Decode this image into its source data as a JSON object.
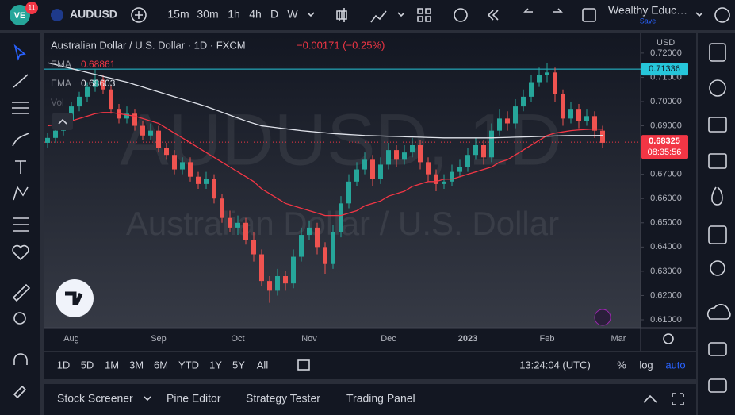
{
  "toolbar": {
    "badge": "11",
    "symbol": "AUDUSD",
    "intervals": [
      "15m",
      "30m",
      "1h",
      "4h",
      "D",
      "W"
    ],
    "layout_name": "Wealthy Educ…",
    "save": "Save"
  },
  "legend": {
    "change": "−0.00171 (−0.25%)",
    "ema_labels": [
      "EMA",
      "EMA"
    ],
    "volume": "Vol"
  },
  "watermark": {
    "symbol": "AUDUSD, 1D",
    "description": "Australian Dollar / U.S. Dollar"
  },
  "chart_data": {
    "type": "candlestick",
    "title": "Australian Dollar / U.S. Dollar · 1D · FXCM",
    "currency": "USD",
    "categories": [
      null,
      null,
      null,
      "Aug",
      null,
      null,
      null,
      null,
      null,
      null,
      null,
      null,
      null,
      null,
      "Sep",
      null,
      null,
      null,
      null,
      null,
      null,
      null,
      null,
      null,
      "Oct",
      null,
      null,
      null,
      null,
      null,
      null,
      null,
      null,
      "Nov",
      null,
      null,
      null,
      null,
      null,
      null,
      null,
      null,
      null,
      "Dec",
      null,
      null,
      null,
      null,
      null,
      null,
      null,
      null,
      null,
      "2023",
      null,
      null,
      null,
      null,
      null,
      null,
      null,
      null,
      null,
      "Feb",
      null,
      null,
      null,
      null,
      null,
      null,
      null,
      null,
      "Mar"
    ],
    "ohlc": [
      [
        0.683,
        0.687,
        0.681,
        0.685
      ],
      [
        0.685,
        0.69,
        0.683,
        0.688
      ],
      [
        0.688,
        0.694,
        0.686,
        0.692
      ],
      [
        0.692,
        0.7,
        0.69,
        0.698
      ],
      [
        0.698,
        0.704,
        0.696,
        0.702
      ],
      [
        0.702,
        0.708,
        0.7,
        0.706
      ],
      [
        0.706,
        0.7135,
        0.704,
        0.709
      ],
      [
        0.709,
        0.711,
        0.703,
        0.705
      ],
      [
        0.705,
        0.707,
        0.695,
        0.697
      ],
      [
        0.697,
        0.699,
        0.691,
        0.693
      ],
      [
        0.693,
        0.698,
        0.691,
        0.695
      ],
      [
        0.695,
        0.697,
        0.688,
        0.69
      ],
      [
        0.69,
        0.692,
        0.684,
        0.686
      ],
      [
        0.686,
        0.691,
        0.684,
        0.688
      ],
      [
        0.688,
        0.69,
        0.679,
        0.681
      ],
      [
        0.681,
        0.683,
        0.676,
        0.678
      ],
      [
        0.678,
        0.68,
        0.67,
        0.672
      ],
      [
        0.672,
        0.677,
        0.67,
        0.675
      ],
      [
        0.675,
        0.677,
        0.667,
        0.669
      ],
      [
        0.669,
        0.671,
        0.664,
        0.666
      ],
      [
        0.666,
        0.671,
        0.664,
        0.668
      ],
      [
        0.668,
        0.67,
        0.658,
        0.66
      ],
      [
        0.66,
        0.662,
        0.65,
        0.652
      ],
      [
        0.652,
        0.655,
        0.646,
        0.648
      ],
      [
        0.648,
        0.653,
        0.645,
        0.65
      ],
      [
        0.65,
        0.652,
        0.641,
        0.643
      ],
      [
        0.643,
        0.646,
        0.634,
        0.637
      ],
      [
        0.637,
        0.639,
        0.624,
        0.626
      ],
      [
        0.626,
        0.628,
        0.617,
        0.622
      ],
      [
        0.622,
        0.631,
        0.62,
        0.628
      ],
      [
        0.628,
        0.63,
        0.622,
        0.625
      ],
      [
        0.625,
        0.639,
        0.623,
        0.636
      ],
      [
        0.636,
        0.648,
        0.634,
        0.645
      ],
      [
        0.645,
        0.651,
        0.643,
        0.648
      ],
      [
        0.648,
        0.65,
        0.637,
        0.64
      ],
      [
        0.64,
        0.642,
        0.629,
        0.633
      ],
      [
        0.633,
        0.649,
        0.631,
        0.646
      ],
      [
        0.646,
        0.661,
        0.644,
        0.658
      ],
      [
        0.658,
        0.67,
        0.656,
        0.667
      ],
      [
        0.667,
        0.675,
        0.665,
        0.672
      ],
      [
        0.672,
        0.679,
        0.67,
        0.676
      ],
      [
        0.676,
        0.678,
        0.665,
        0.668
      ],
      [
        0.668,
        0.677,
        0.666,
        0.674
      ],
      [
        0.674,
        0.683,
        0.672,
        0.68
      ],
      [
        0.68,
        0.682,
        0.673,
        0.676
      ],
      [
        0.676,
        0.682,
        0.674,
        0.679
      ],
      [
        0.679,
        0.685,
        0.677,
        0.682
      ],
      [
        0.682,
        0.684,
        0.672,
        0.675
      ],
      [
        0.675,
        0.677,
        0.667,
        0.67
      ],
      [
        0.67,
        0.672,
        0.663,
        0.666
      ],
      [
        0.666,
        0.67,
        0.664,
        0.667
      ],
      [
        0.667,
        0.674,
        0.665,
        0.671
      ],
      [
        0.671,
        0.676,
        0.669,
        0.673
      ],
      [
        0.673,
        0.681,
        0.671,
        0.678
      ],
      [
        0.678,
        0.685,
        0.676,
        0.682
      ],
      [
        0.682,
        0.684,
        0.674,
        0.677
      ],
      [
        0.677,
        0.691,
        0.675,
        0.688
      ],
      [
        0.688,
        0.697,
        0.686,
        0.693
      ],
      [
        0.693,
        0.696,
        0.688,
        0.691
      ],
      [
        0.691,
        0.701,
        0.689,
        0.698
      ],
      [
        0.698,
        0.705,
        0.696,
        0.702
      ],
      [
        0.702,
        0.711,
        0.7,
        0.708
      ],
      [
        0.708,
        0.714,
        0.706,
        0.711
      ],
      [
        0.711,
        0.716,
        0.708,
        0.712
      ],
      [
        0.712,
        0.714,
        0.7,
        0.703
      ],
      [
        0.703,
        0.705,
        0.69,
        0.693
      ],
      [
        0.693,
        0.7,
        0.691,
        0.697
      ],
      [
        0.697,
        0.699,
        0.689,
        0.692
      ],
      [
        0.692,
        0.697,
        0.69,
        0.694
      ],
      [
        0.694,
        0.696,
        0.685,
        0.688
      ],
      [
        0.688,
        0.69,
        0.681,
        0.683
      ],
      null,
      null
    ],
    "up_color": "#26a69a",
    "down_color": "#ef5350",
    "series": [
      {
        "name": "EMA",
        "color": "#f23645",
        "values": [
          0.69,
          0.6905,
          0.691,
          0.692,
          0.693,
          0.694,
          0.695,
          0.6955,
          0.6955,
          0.695,
          0.6945,
          0.694,
          0.693,
          0.692,
          0.691,
          0.689,
          0.687,
          0.685,
          0.683,
          0.681,
          0.679,
          0.677,
          0.675,
          0.673,
          0.671,
          0.669,
          0.667,
          0.664,
          0.662,
          0.66,
          0.658,
          0.657,
          0.656,
          0.655,
          0.654,
          0.653,
          0.653,
          0.653,
          0.654,
          0.655,
          0.657,
          0.658,
          0.659,
          0.661,
          0.662,
          0.663,
          0.665,
          0.666,
          0.667,
          0.667,
          0.668,
          0.668,
          0.669,
          0.67,
          0.671,
          0.672,
          0.673,
          0.675,
          0.676,
          0.678,
          0.68,
          0.682,
          0.684,
          0.686,
          0.687,
          0.6875,
          0.688,
          0.6883,
          0.6885,
          0.6887,
          0.68861,
          null,
          null
        ]
      },
      {
        "name": "EMA",
        "color": "#e0e3eb",
        "values": [
          0.716,
          0.7152,
          0.7144,
          0.7136,
          0.7128,
          0.712,
          0.7112,
          0.7104,
          0.7096,
          0.7088,
          0.708,
          0.707,
          0.706,
          0.705,
          0.704,
          0.703,
          0.702,
          0.701,
          0.7,
          0.699,
          0.698,
          0.6968,
          0.6956,
          0.6944,
          0.6932,
          0.692,
          0.691,
          0.69,
          0.6896,
          0.6892,
          0.6888,
          0.6884,
          0.688,
          0.6877,
          0.6874,
          0.6871,
          0.6868,
          0.6866,
          0.6864,
          0.6862,
          0.686,
          0.6859,
          0.6858,
          0.6857,
          0.6856,
          0.6855,
          0.6854,
          0.6853,
          0.6852,
          0.6851,
          0.685,
          0.685,
          0.685,
          0.685,
          0.685,
          0.685,
          0.685,
          0.6851,
          0.6852,
          0.6853,
          0.6854,
          0.6855,
          0.6856,
          0.6857,
          0.6858,
          0.6859,
          0.686,
          0.686,
          0.686,
          0.686,
          0.68603,
          null,
          null
        ]
      }
    ],
    "high_line": {
      "value": 0.71336,
      "color": "#26c6da"
    },
    "last_price": {
      "value": 0.68325,
      "countdown": "08:35:56",
      "color": "#f23645"
    },
    "ylim": [
      0.60673,
      0.72716
    ],
    "yticks": [
      {
        "value": 0.61,
        "label": "0.61000"
      },
      {
        "value": 0.62,
        "label": "0.62000"
      },
      {
        "value": 0.63,
        "label": "0.63000"
      },
      {
        "value": 0.64,
        "label": "0.64000"
      },
      {
        "value": 0.65,
        "label": "0.65000"
      },
      {
        "value": 0.66,
        "label": "0.66000"
      },
      {
        "value": 0.67,
        "label": "0.67000"
      },
      {
        "value": 0.68,
        "label": "0.68000"
      },
      {
        "value": 0.69,
        "label": "0.69000"
      },
      {
        "value": 0.7,
        "label": "0.70000"
      },
      {
        "value": 0.71,
        "label": "0.71000"
      },
      {
        "value": 0.72,
        "label": "0.72000"
      }
    ],
    "grid": false
  },
  "footer": {
    "ranges": [
      "1D",
      "5D",
      "1M",
      "3M",
      "6M",
      "YTD",
      "1Y",
      "5Y",
      "All"
    ],
    "clock": "13:24:04 (UTC)",
    "percent": "%",
    "log": "log",
    "auto": "auto",
    "tabs": [
      "Stock Screener",
      "Pine Editor",
      "Strategy Tester",
      "Trading Panel"
    ]
  }
}
